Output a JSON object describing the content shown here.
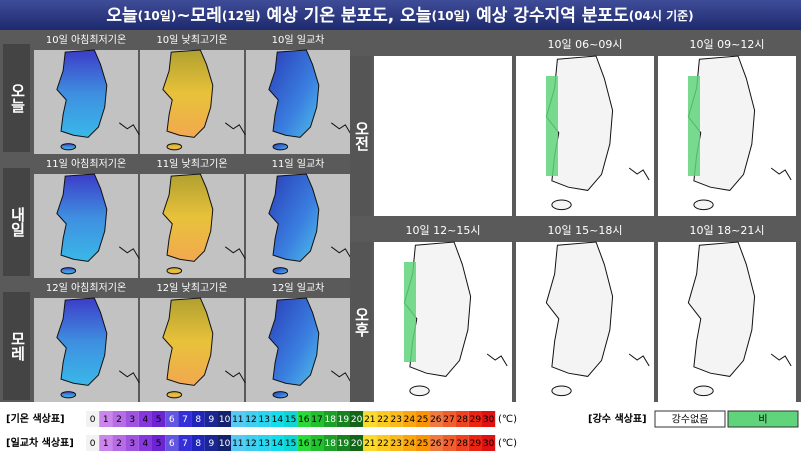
{
  "title": {
    "segments": [
      "오늘",
      "(10일)",
      "~모레",
      "(12일)",
      " 예상 기온 분포도, 오늘",
      "(10일)",
      " 예상 강수지역 분포도",
      "(04시 기준)"
    ]
  },
  "temperature": {
    "rows": [
      {
        "label": "오늘",
        "maps": [
          "10일 아침최저기온",
          "10일 낮최고기온",
          "10일 일교차"
        ]
      },
      {
        "label": "내일",
        "maps": [
          "11일 아침최저기온",
          "11일 낮최고기온",
          "11일 일교차"
        ]
      },
      {
        "label": "모레",
        "maps": [
          "12일 아침최저기온",
          "12일 낮최고기온",
          "12일 일교차"
        ]
      }
    ]
  },
  "precipitation": {
    "rows": [
      {
        "label": "오전",
        "maps": [
          "",
          "10일 06~09시",
          "10일 09~12시"
        ]
      },
      {
        "label": "오후",
        "maps": [
          "10일 12~15시",
          "10일 15~18시",
          "10일 18~21시"
        ]
      }
    ]
  },
  "legend": {
    "temperature": {
      "title": "[기온 색상표]",
      "scale": [
        0,
        1,
        2,
        3,
        4,
        5,
        6,
        7,
        8,
        9,
        10,
        11,
        12,
        13,
        14,
        15,
        16,
        17,
        18,
        19,
        20,
        21,
        22,
        23,
        24,
        25,
        26,
        27,
        28,
        29,
        30
      ],
      "unit": "(℃)"
    },
    "range": {
      "title": "[일교차 색상표]",
      "scale": [
        0,
        1,
        2,
        3,
        4,
        5,
        6,
        7,
        8,
        9,
        10,
        11,
        12,
        13,
        14,
        15,
        16,
        17,
        18,
        19,
        20,
        21,
        22,
        23,
        24,
        25,
        26,
        27,
        28,
        29,
        30
      ],
      "unit": "(℃)"
    },
    "precipitation": {
      "title": "[강수 색상표]",
      "items": [
        "강수없음",
        "비"
      ]
    }
  }
}
